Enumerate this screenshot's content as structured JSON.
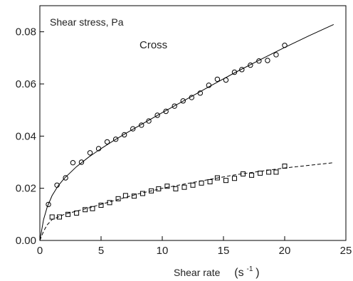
{
  "chart_data": {
    "type": "scatter",
    "title": "",
    "xlabel": "Shear rate",
    "xlabel_unit": "(s",
    "xlabel_unit_exp": "-1",
    "xlabel_unit_close": ")",
    "ylabel": "",
    "xlim": [
      0,
      25
    ],
    "ylim": [
      0,
      0.09
    ],
    "xticks": [
      0,
      5,
      10,
      15,
      20,
      25
    ],
    "xtick_labels": [
      "0",
      "5",
      "10",
      "15",
      "20",
      "25"
    ],
    "yticks": [
      0,
      0.02,
      0.04,
      0.06,
      0.08
    ],
    "ytick_labels": [
      "0.00",
      "0.02",
      "0.04",
      "0.06",
      "0.08"
    ],
    "grid": false,
    "annotations": {
      "quantity": "Shear stress, Pa",
      "model": "Cross"
    },
    "series": [
      {
        "marker": "circle",
        "points": [
          [
            0.7,
            0.0138
          ],
          [
            1.4,
            0.0212
          ],
          [
            2.1,
            0.024
          ],
          [
            2.7,
            0.0298
          ],
          [
            3.4,
            0.03
          ],
          [
            4.1,
            0.0336
          ],
          [
            4.8,
            0.0352
          ],
          [
            5.5,
            0.0378
          ],
          [
            6.2,
            0.0388
          ],
          [
            6.9,
            0.0405
          ],
          [
            7.6,
            0.0428
          ],
          [
            8.3,
            0.0442
          ],
          [
            8.9,
            0.0458
          ],
          [
            9.6,
            0.048
          ],
          [
            10.3,
            0.0495
          ],
          [
            11.0,
            0.0515
          ],
          [
            11.7,
            0.0535
          ],
          [
            12.4,
            0.0548
          ],
          [
            13.1,
            0.0565
          ],
          [
            13.8,
            0.0595
          ],
          [
            14.5,
            0.0618
          ],
          [
            15.2,
            0.0615
          ],
          [
            15.9,
            0.0645
          ],
          [
            16.5,
            0.0655
          ],
          [
            17.2,
            0.0672
          ],
          [
            17.9,
            0.0688
          ],
          [
            18.6,
            0.069
          ],
          [
            19.3,
            0.0712
          ],
          [
            20.0,
            0.0748
          ]
        ],
        "fit": {
          "style": "solid",
          "points": [
            [
              0,
              0
            ],
            [
              0.3,
              0.008
            ],
            [
              0.6,
              0.0128
            ],
            [
              1.0,
              0.0172
            ],
            [
              1.5,
              0.021
            ],
            [
              2.0,
              0.0238
            ],
            [
              3.0,
              0.0283
            ],
            [
              4.0,
              0.032
            ],
            [
              5.0,
              0.0352
            ],
            [
              6.0,
              0.0382
            ],
            [
              7.0,
              0.041
            ],
            [
              8.0,
              0.0437
            ],
            [
              10.0,
              0.049
            ],
            [
              12.0,
              0.0542
            ],
            [
              14.0,
              0.0594
            ],
            [
              16.0,
              0.0645
            ],
            [
              18.0,
              0.0693
            ],
            [
              20.0,
              0.074
            ],
            [
              22.0,
              0.0785
            ],
            [
              24.0,
              0.0828
            ]
          ]
        }
      },
      {
        "marker": "square",
        "points": [
          [
            1.0,
            0.009
          ],
          [
            1.6,
            0.009
          ],
          [
            2.3,
            0.01
          ],
          [
            3.0,
            0.0105
          ],
          [
            3.7,
            0.0118
          ],
          [
            4.3,
            0.0122
          ],
          [
            5.0,
            0.0135
          ],
          [
            5.7,
            0.0145
          ],
          [
            6.4,
            0.016
          ],
          [
            7.0,
            0.0172
          ],
          [
            7.7,
            0.017
          ],
          [
            8.4,
            0.018
          ],
          [
            9.1,
            0.019
          ],
          [
            9.7,
            0.0198
          ],
          [
            10.4,
            0.0208
          ],
          [
            11.1,
            0.0198
          ],
          [
            11.8,
            0.0204
          ],
          [
            12.5,
            0.0212
          ],
          [
            13.2,
            0.022
          ],
          [
            13.9,
            0.0225
          ],
          [
            14.5,
            0.024
          ],
          [
            15.2,
            0.023
          ],
          [
            15.9,
            0.0238
          ],
          [
            16.6,
            0.0255
          ],
          [
            17.3,
            0.025
          ],
          [
            18.0,
            0.0258
          ],
          [
            18.7,
            0.0262
          ],
          [
            19.3,
            0.0262
          ],
          [
            20.0,
            0.0285
          ]
        ],
        "fit": {
          "style": "dashed",
          "points": [
            [
              0,
              0
            ],
            [
              0.3,
              0.0035
            ],
            [
              0.6,
              0.006
            ],
            [
              1.0,
              0.008
            ],
            [
              2.0,
              0.01
            ],
            [
              4.0,
              0.0125
            ],
            [
              6.0,
              0.0152
            ],
            [
              8.0,
              0.0178
            ],
            [
              10.0,
              0.02
            ],
            [
              12.0,
              0.0218
            ],
            [
              14.0,
              0.0235
            ],
            [
              16.0,
              0.0252
            ],
            [
              18.0,
              0.0265
            ],
            [
              20.0,
              0.0278
            ],
            [
              22.0,
              0.0288
            ],
            [
              24.0,
              0.0298
            ]
          ]
        }
      }
    ]
  }
}
